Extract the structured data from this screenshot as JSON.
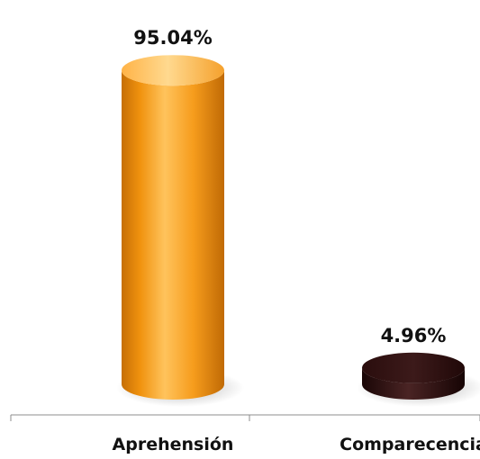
{
  "chart_data": {
    "type": "bar",
    "categories": [
      "Aprehensión",
      "Comparecencia"
    ],
    "values": [
      95.04,
      4.96
    ],
    "data_labels": [
      "95.04%",
      "4.96%"
    ],
    "unit": "%",
    "ylim": [
      0,
      100
    ],
    "title": "",
    "xlabel": "",
    "ylabel": "",
    "grid": false,
    "legend": "none",
    "bar_style": "3d-cylinder",
    "colors": {
      "series_colors": [
        "#f39a1c",
        "#3a1a1a"
      ],
      "axis": "#8c8c8c",
      "text": "#111111"
    }
  }
}
